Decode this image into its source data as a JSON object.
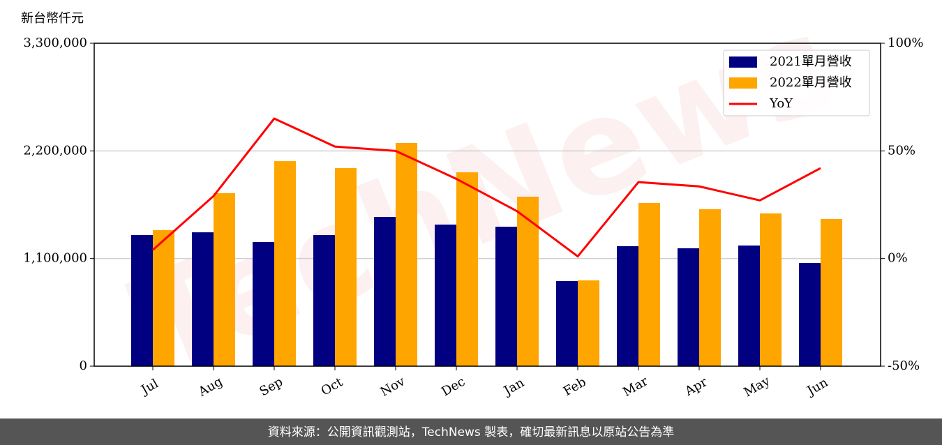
{
  "chart_data": {
    "type": "bar_line",
    "y_label": "新台幣仟元",
    "categories": [
      "Jul",
      "Aug",
      "Sep",
      "Oct",
      "Nov",
      "Dec",
      "Jan",
      "Feb",
      "Mar",
      "Apr",
      "May",
      "Jun"
    ],
    "series": [
      {
        "name": "2021單月營收",
        "color": "#000080",
        "type": "bar",
        "values": [
          1340000,
          1368000,
          1269000,
          1340000,
          1525000,
          1447000,
          1425000,
          870000,
          1226000,
          1205000,
          1233000,
          1055000
        ]
      },
      {
        "name": "2022單月營收",
        "color": "#ffa500",
        "type": "bar",
        "values": [
          1390000,
          1768000,
          2095000,
          2024000,
          2281000,
          1981000,
          1732000,
          877000,
          1668000,
          1604000,
          1561000,
          1504000
        ]
      },
      {
        "name": "YoY",
        "color": "#ff0000",
        "type": "line",
        "axis": "y2",
        "values": [
          4,
          29,
          65,
          52,
          50,
          37,
          22,
          1,
          35.5,
          33.5,
          27,
          42
        ]
      }
    ],
    "ylim": [
      0,
      3300000
    ],
    "yticks": [
      0,
      {
        "value": 1100000,
        "label": "1,100,000"
      },
      {
        "value": 2200000,
        "label": "2,200,000"
      },
      {
        "value": 3300000,
        "label": "3,300,000"
      }
    ],
    "y2lim": [
      -50,
      100
    ],
    "y2ticks": [
      {
        "value": -50,
        "label": "-50%"
      },
      {
        "value": 0,
        "label": "0%"
      },
      {
        "value": 50,
        "label": "50%"
      },
      {
        "value": 100,
        "label": "100%"
      }
    ],
    "grid": true,
    "legend": "upper right",
    "watermark": "TechNews",
    "footer": "資料來源：公開資訊觀測站，TechNews 製表，確切最新訊息以原站公告為準"
  }
}
